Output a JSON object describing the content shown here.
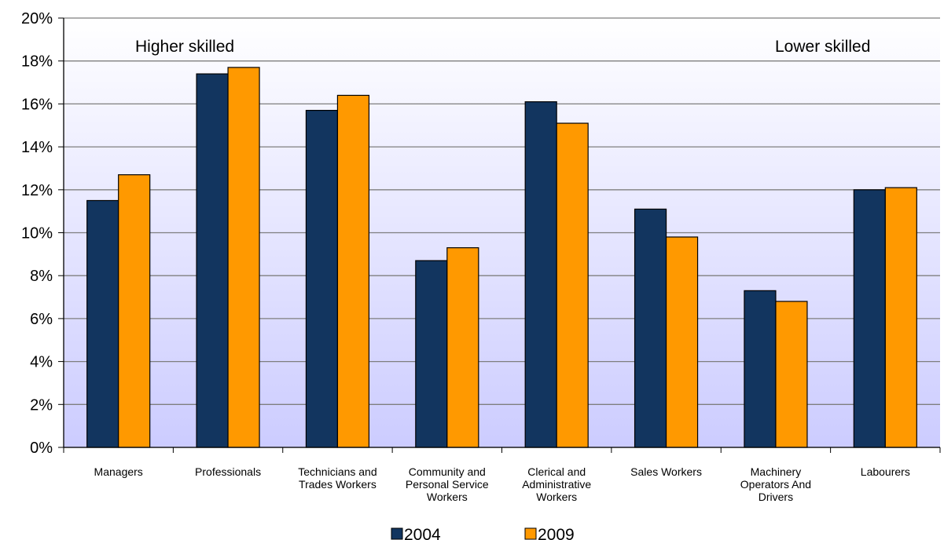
{
  "chart_data": {
    "type": "bar",
    "categories": [
      [
        "Managers"
      ],
      [
        "Professionals"
      ],
      [
        "Technicians and",
        "Trades Workers"
      ],
      [
        "Community and",
        "Personal Service",
        "Workers"
      ],
      [
        "Clerical and",
        "Administrative",
        "Workers"
      ],
      [
        "Sales Workers"
      ],
      [
        "Machinery",
        "Operators And",
        "Drivers"
      ],
      [
        "Labourers"
      ]
    ],
    "series": [
      {
        "name": "2004",
        "color": "#12355f",
        "values": [
          11.5,
          17.4,
          15.7,
          8.7,
          16.1,
          11.1,
          7.3,
          12.0
        ]
      },
      {
        "name": "2009",
        "color": "#ff9900",
        "values": [
          12.7,
          17.7,
          16.4,
          9.3,
          15.1,
          9.8,
          6.8,
          12.1
        ]
      }
    ],
    "ylim": [
      0,
      20
    ],
    "yticks": [
      "0%",
      "2%",
      "4%",
      "6%",
      "8%",
      "10%",
      "12%",
      "14%",
      "16%",
      "18%",
      "20%"
    ],
    "annotations": {
      "left": "Higher skilled",
      "right": "Lower skilled"
    },
    "grid": true,
    "legend_position": "bottom",
    "background_gradient": [
      "#ffffff",
      "#ccccff"
    ]
  }
}
